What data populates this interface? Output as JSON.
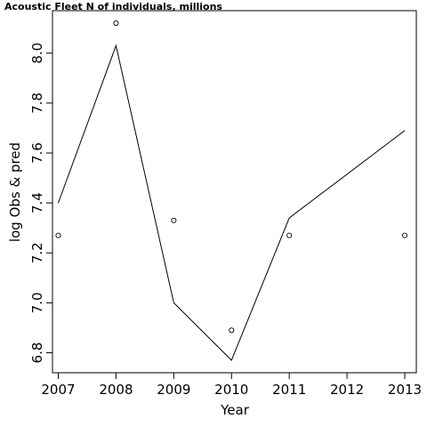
{
  "chart_data": {
    "type": "line",
    "title": "Acoustic Fleet   N of individuals, millions",
    "xlabel": "Year",
    "ylabel": "log Obs & pred",
    "xlim": [
      2006.9,
      2013.2
    ],
    "ylim": [
      6.72,
      8.17
    ],
    "x_ticks": [
      2007,
      2008,
      2009,
      2010,
      2011,
      2012,
      2013
    ],
    "y_ticks": [
      6.8,
      7.0,
      7.2,
      7.4,
      7.6,
      7.8,
      8.0
    ],
    "y_tick_labels": [
      "6.8",
      "7.0",
      "7.2",
      "7.4",
      "7.6",
      "7.8",
      "8.0"
    ],
    "grid": false,
    "series": [
      {
        "kind": "line",
        "x": [
          2007,
          2008,
          2009,
          2010,
          2011,
          2013
        ],
        "y": [
          7.4,
          8.03,
          7.0,
          6.77,
          7.34,
          7.69
        ]
      },
      {
        "kind": "points",
        "marker": "open-circle",
        "x": [
          2007,
          2008,
          2009,
          2010,
          2011,
          2013
        ],
        "y": [
          7.27,
          8.12,
          7.33,
          6.89,
          7.27,
          7.27
        ]
      }
    ]
  }
}
